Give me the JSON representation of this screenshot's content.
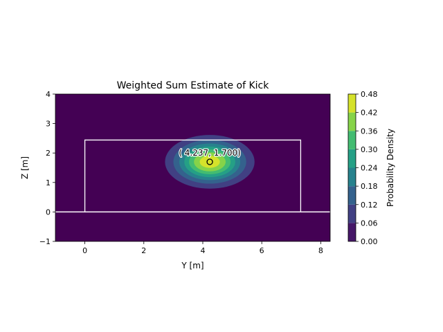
{
  "chart_data": {
    "type": "heatmap",
    "title": "Weighted Sum Estimate of Kick",
    "xlabel": "Y [m]",
    "ylabel": "Z [m]",
    "xlim": [
      -1.0,
      8.32
    ],
    "ylim": [
      -1,
      4
    ],
    "xticks": [
      "0",
      "2",
      "4",
      "6",
      "8"
    ],
    "yticks": [
      "−1",
      "0",
      "1",
      "2",
      "3",
      "4"
    ],
    "xtick_values": [
      0,
      2,
      4,
      6,
      8
    ],
    "ytick_values": [
      -1,
      0,
      1,
      2,
      3,
      4
    ],
    "grid": false,
    "colormap": "viridis",
    "density": {
      "peak": 0.466,
      "center": [
        4.237,
        1.7
      ],
      "sigma_y": 0.75,
      "sigma_z": 0.45,
      "levels": [
        0.0,
        0.06,
        0.12,
        0.18,
        0.24,
        0.3,
        0.36,
        0.42,
        0.48
      ]
    },
    "goal": {
      "post_left_y": 0.0,
      "post_right_y": 7.32,
      "crossbar_z": 2.44,
      "ground_z": 0.0
    },
    "estimate": {
      "y": 4.237,
      "z": 1.7,
      "label": "( 4.237,  1.700)"
    },
    "colorbar": {
      "label": "Probability Density",
      "min": 0.0,
      "max": 0.48,
      "ticks": [
        "0.00",
        "0.06",
        "0.12",
        "0.18",
        "0.24",
        "0.30",
        "0.36",
        "0.42",
        "0.48"
      ],
      "tick_values": [
        0.0,
        0.06,
        0.12,
        0.18,
        0.24,
        0.3,
        0.36,
        0.42,
        0.48
      ]
    }
  }
}
